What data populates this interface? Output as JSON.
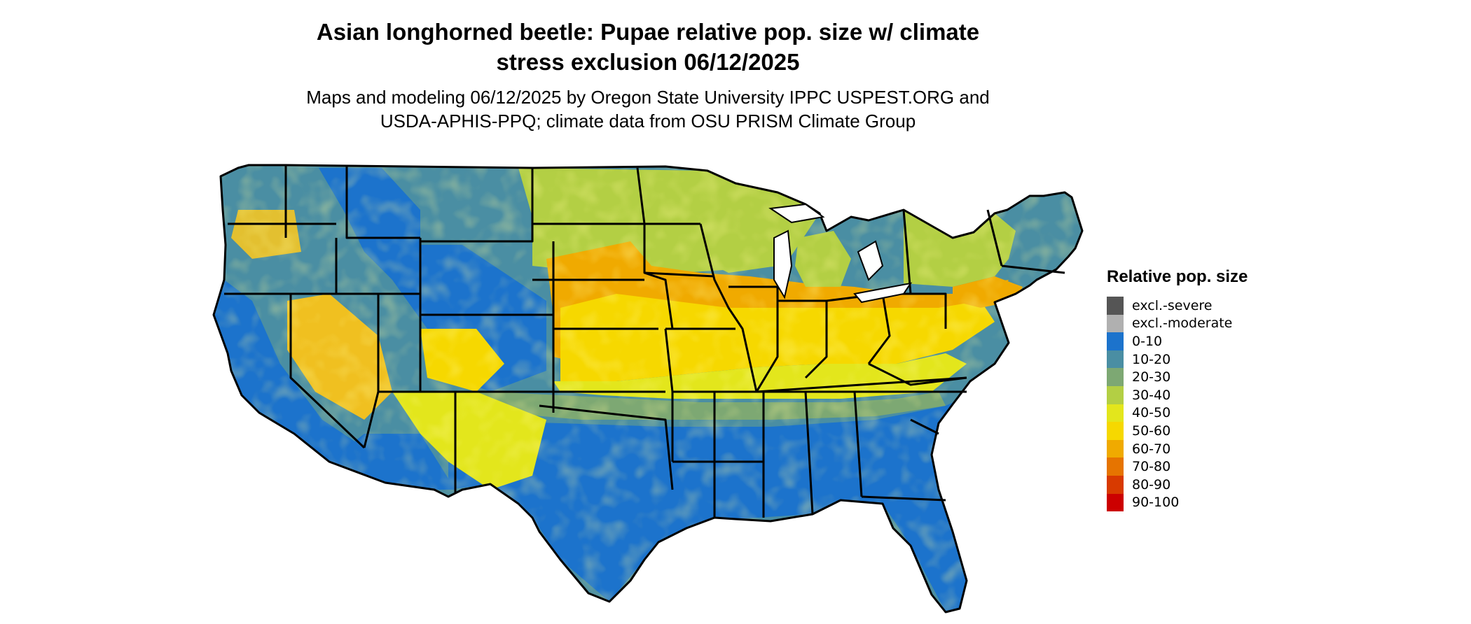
{
  "title": {
    "line1": "Asian longhorned beetle: Pupae relative pop. size w/ climate",
    "line2": "stress exclusion 06/12/2025"
  },
  "subtitle": {
    "line1": "Maps and modeling 06/12/2025 by Oregon State University IPPC USPEST.ORG and",
    "line2": "USDA-APHIS-PPQ; climate data from OSU PRISM Climate Group"
  },
  "legend": {
    "title": "Relative pop. size",
    "items": [
      {
        "label": "excl.-severe",
        "color": "#555555"
      },
      {
        "label": "excl.-moderate",
        "color": "#b0b0b0"
      },
      {
        "label": "0-10",
        "color": "#1c73cc"
      },
      {
        "label": "10-20",
        "color": "#4a8ea3"
      },
      {
        "label": "20-30",
        "color": "#7da873"
      },
      {
        "label": "30-40",
        "color": "#b3cf44"
      },
      {
        "label": "40-50",
        "color": "#e3e61c"
      },
      {
        "label": "50-60",
        "color": "#f6d800"
      },
      {
        "label": "60-70",
        "color": "#f0aa00"
      },
      {
        "label": "70-80",
        "color": "#e67400"
      },
      {
        "label": "80-90",
        "color": "#d83a00"
      },
      {
        "label": "90-100",
        "color": "#cc0000"
      }
    ]
  }
}
